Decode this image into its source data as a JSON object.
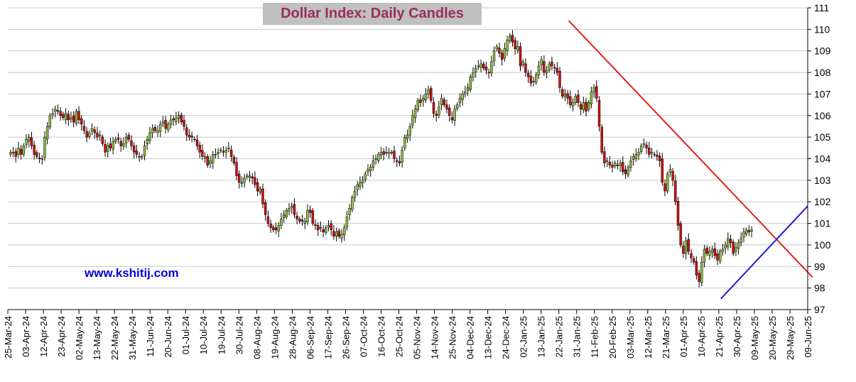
{
  "chart_data": {
    "type": "candlestick",
    "title": "Dollar Index: Daily Candles",
    "watermark": "www.kshitij.com",
    "y_axis_position": "right",
    "ylim": [
      97,
      111
    ],
    "y_ticks": [
      97,
      98,
      99,
      100,
      101,
      102,
      103,
      104,
      105,
      106,
      107,
      108,
      109,
      110,
      111
    ],
    "x_tick_labels": [
      "25-Mar-24",
      "03-Apr-24",
      "12-Apr-24",
      "23-Apr-24",
      "02-May-24",
      "13-May-24",
      "22-May-24",
      "31-May-24",
      "11-Jun-24",
      "20-Jun-24",
      "01-Jul-24",
      "10-Jul-24",
      "19-Jul-24",
      "30-Jul-24",
      "08-Aug-24",
      "19-Aug-24",
      "28-Aug-24",
      "06-Sep-24",
      "17-Sep-24",
      "26-Sep-24",
      "07-Oct-24",
      "16-Oct-24",
      "25-Oct-24",
      "05-Nov-24",
      "14-Nov-24",
      "25-Nov-24",
      "04-Dec-24",
      "13-Dec-24",
      "24-Dec-24",
      "02-Jan-25",
      "13-Jan-25",
      "22-Jan-25",
      "31-Jan-25",
      "11-Feb-25",
      "20-Feb-25",
      "03-Mar-25",
      "12-Mar-25",
      "21-Mar-25",
      "01-Apr-25",
      "10-Apr-25",
      "21-Apr-25",
      "30-Apr-25",
      "09-May-25",
      "20-May-25",
      "29-May-25",
      "09-Jun-25"
    ],
    "grid": true,
    "up_color": "#8fbc3f",
    "down_color": "#cc1111",
    "closes": [
      104.3,
      104.3,
      104.1,
      104.5,
      104.2,
      104.6,
      104.9,
      105.0,
      104.6,
      104.2,
      104.1,
      104.0,
      104.0,
      105.0,
      105.5,
      106.0,
      106.1,
      106.3,
      106.2,
      106.0,
      105.9,
      106.1,
      105.8,
      105.9,
      105.7,
      106.2,
      105.8,
      105.6,
      105.3,
      105.0,
      105.2,
      105.4,
      105.2,
      105.0,
      105.1,
      104.7,
      104.3,
      104.6,
      104.5,
      104.8,
      104.9,
      104.9,
      104.6,
      104.7,
      105.0,
      104.9,
      104.6,
      104.3,
      104.2,
      104.1,
      104.1,
      104.6,
      104.9,
      105.2,
      105.4,
      105.3,
      105.3,
      105.6,
      105.7,
      105.4,
      105.6,
      105.8,
      105.8,
      105.9,
      106.0,
      105.7,
      105.5,
      105.1,
      105.0,
      105.0,
      104.9,
      104.6,
      104.3,
      104.1,
      104.1,
      103.7,
      103.9,
      104.2,
      104.2,
      104.3,
      104.4,
      104.3,
      104.4,
      104.5,
      104.1,
      103.8,
      103.2,
      102.9,
      102.9,
      103.1,
      103.2,
      103.2,
      103.1,
      102.8,
      102.5,
      102.6,
      101.9,
      101.4,
      101.0,
      100.8,
      100.7,
      100.7,
      100.9,
      101.2,
      101.4,
      101.6,
      101.7,
      101.8,
      101.4,
      101.2,
      101.1,
      101.1,
      101.1,
      101.6,
      101.5,
      101.0,
      100.9,
      100.7,
      100.8,
      100.6,
      100.8,
      100.9,
      100.7,
      100.4,
      100.6,
      100.4,
      100.5,
      100.8,
      101.3,
      101.7,
      102.2,
      102.5,
      102.8,
      102.9,
      103.0,
      103.3,
      103.5,
      103.6,
      103.9,
      104.0,
      104.2,
      104.3,
      104.2,
      104.3,
      104.3,
      104.3,
      104.0,
      103.9,
      103.8,
      104.4,
      105.0,
      105.1,
      105.5,
      106.0,
      106.3,
      106.7,
      106.6,
      106.8,
      107.0,
      107.2,
      106.7,
      106.1,
      106.0,
      106.4,
      106.8,
      106.5,
      106.3,
      106.0,
      105.8,
      106.3,
      106.5,
      106.8,
      107.0,
      107.1,
      107.3,
      107.8,
      108.0,
      108.2,
      108.3,
      108.4,
      108.2,
      108.1,
      108.0,
      108.5,
      109.0,
      109.2,
      108.9,
      108.6,
      109.1,
      109.5,
      109.7,
      109.4,
      109.1,
      109.2,
      108.3,
      108.5,
      108.0,
      107.8,
      107.5,
      107.6,
      107.9,
      108.3,
      108.6,
      108.0,
      108.1,
      108.4,
      108.3,
      108.2,
      108.0,
      107.3,
      106.9,
      107.0,
      106.8,
      106.5,
      106.6,
      106.9,
      106.6,
      106.3,
      106.6,
      106.2,
      106.6,
      107.1,
      107.3,
      106.8,
      105.5,
      104.3,
      103.8,
      103.9,
      103.7,
      103.6,
      103.8,
      103.7,
      103.8,
      103.4,
      103.3,
      103.6,
      103.9,
      104.1,
      104.2,
      104.3,
      104.6,
      104.7,
      104.5,
      104.2,
      104.3,
      104.2,
      104.1,
      103.9,
      102.9,
      102.5,
      103.3,
      103.5,
      103.0,
      102.0,
      100.9,
      100.0,
      99.6,
      100.2,
      99.7,
      99.4,
      99.2,
      98.6,
      98.3,
      99.2,
      99.8,
      99.6,
      99.7,
      99.8,
      99.5,
      99.3,
      99.7,
      99.8,
      100.0,
      100.3,
      100.1,
      99.6,
      99.9,
      100.1,
      100.3,
      100.6,
      100.7,
      100.6,
      100.7
    ],
    "trendlines": [
      {
        "color": "#e02020",
        "from": {
          "x": "27-Jan-25",
          "y": 110.4
        },
        "to": {
          "x": "12-Jun-25",
          "y": 98.5
        }
      },
      {
        "color": "#1a1adb",
        "from": {
          "x": "22-Apr-25",
          "y": 97.5
        },
        "to": {
          "x": "09-Jun-25",
          "y": 101.8
        }
      }
    ]
  }
}
